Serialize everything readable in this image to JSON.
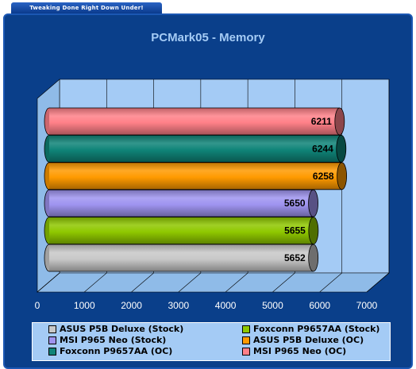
{
  "header_tab": "Tweaking Done Right Down Under!",
  "chart_data": {
    "type": "bar",
    "orientation": "horizontal",
    "title": "PCMark05 - Memory",
    "xlim": [
      0,
      7000
    ],
    "xticks": [
      0,
      1000,
      2000,
      3000,
      4000,
      5000,
      6000,
      7000
    ],
    "grid": true,
    "legend_position": "bottom",
    "series": [
      {
        "name": "ASUS P5B Deluxe (Stock)",
        "value": 5652,
        "color": "#c8c8c8"
      },
      {
        "name": "Foxconn P9657AA (Stock)",
        "value": 5655,
        "color": "#8fc800"
      },
      {
        "name": "MSI P965 Neo (Stock)",
        "value": 5650,
        "color": "#9f94f0"
      },
      {
        "name": "ASUS P5B Deluxe (OC)",
        "value": 6258,
        "color": "#ff9a00"
      },
      {
        "name": "Foxconn P9657AA (OC)",
        "value": 6244,
        "color": "#0f8478"
      },
      {
        "name": "MSI P965 Neo (OC)",
        "value": 6211,
        "color": "#ff8088"
      }
    ]
  }
}
